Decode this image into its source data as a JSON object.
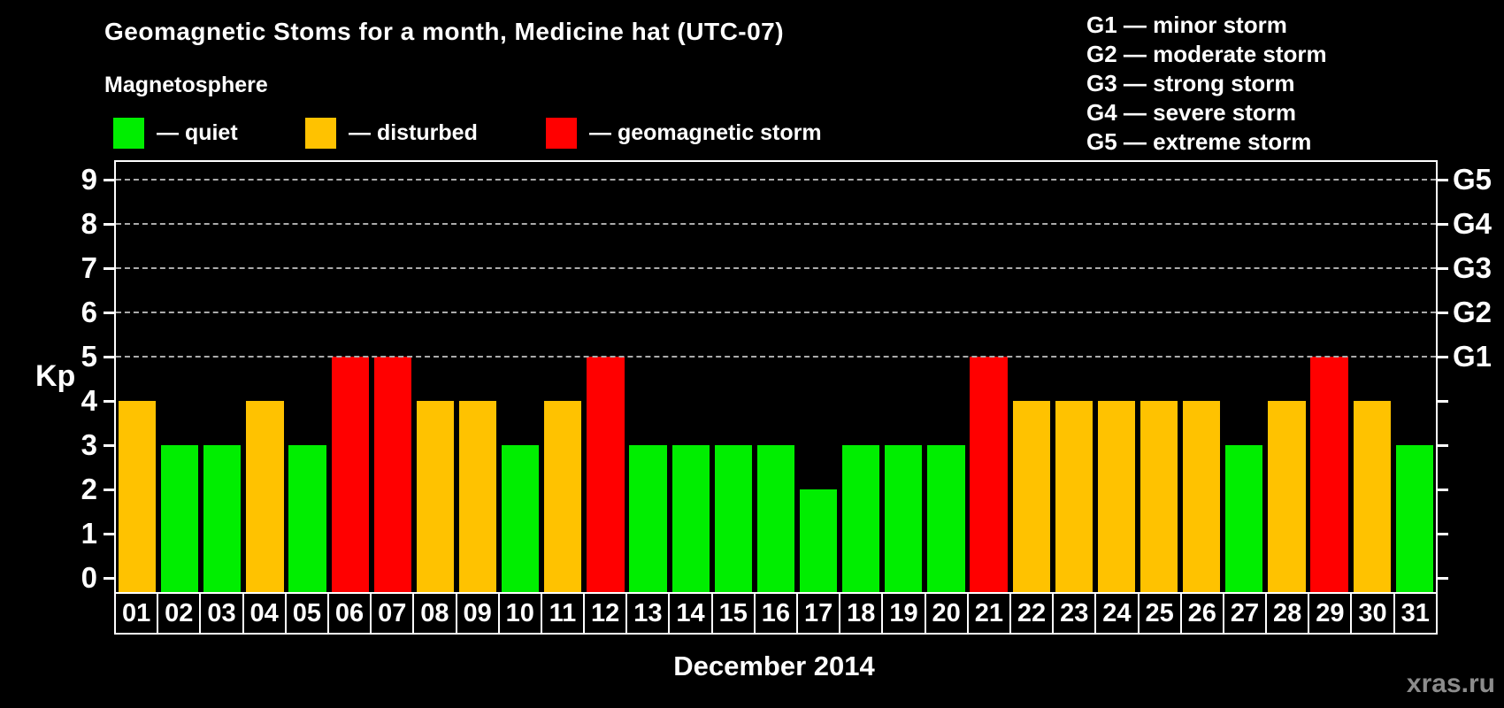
{
  "title": "Geomagnetic Stoms for a month, Medicine hat (UTC-07)",
  "subtitle": "Magnetosphere",
  "legend": {
    "items": [
      {
        "label": "— quiet",
        "state": "quiet",
        "color": "#00EE00"
      },
      {
        "label": "— disturbed",
        "state": "disturbed",
        "color": "#FFC200"
      },
      {
        "label": "— geomagnetic storm",
        "state": "storm",
        "color": "#FF0000"
      }
    ]
  },
  "g_legend": [
    "G1 — minor storm",
    "G2 — moderate storm",
    "G3 — strong storm",
    "G4 — severe storm",
    "G5 — extreme storm"
  ],
  "colors": {
    "quiet": "#00EE00",
    "disturbed": "#FFC200",
    "storm": "#FF0000",
    "axis": "#FFFFFF",
    "grid": "#ABABAB",
    "watermark": "#8C8C8C",
    "background": "#000000"
  },
  "axes": {
    "y_label": "Kp",
    "x_label": "December 2014"
  },
  "watermark": "xras.ru",
  "chart_data": {
    "type": "bar",
    "title": "Geomagnetic Stoms for a month, Medicine hat (UTC-07)",
    "xlabel": "December 2014",
    "ylabel": "Kp",
    "ylim": [
      0,
      9
    ],
    "grid": "dashed horizontal at Kp 5-9 only",
    "legend_position": "top-left",
    "categories": [
      "01",
      "02",
      "03",
      "04",
      "05",
      "06",
      "07",
      "08",
      "09",
      "10",
      "11",
      "12",
      "13",
      "14",
      "15",
      "16",
      "17",
      "18",
      "19",
      "20",
      "21",
      "22",
      "23",
      "24",
      "25",
      "26",
      "27",
      "28",
      "29",
      "30",
      "31"
    ],
    "values": [
      4,
      3,
      3,
      4,
      3,
      5,
      5,
      4,
      4,
      3,
      4,
      5,
      3,
      3,
      3,
      3,
      2,
      3,
      3,
      3,
      5,
      4,
      4,
      4,
      4,
      4,
      3,
      4,
      5,
      4,
      3
    ],
    "states": [
      "disturbed",
      "quiet",
      "quiet",
      "disturbed",
      "quiet",
      "storm",
      "storm",
      "disturbed",
      "disturbed",
      "quiet",
      "disturbed",
      "storm",
      "quiet",
      "quiet",
      "quiet",
      "quiet",
      "quiet",
      "quiet",
      "quiet",
      "quiet",
      "storm",
      "disturbed",
      "disturbed",
      "disturbed",
      "disturbed",
      "disturbed",
      "quiet",
      "disturbed",
      "storm",
      "disturbed",
      "quiet"
    ],
    "y_ticks": [
      0,
      1,
      2,
      3,
      4,
      5,
      6,
      7,
      8,
      9
    ],
    "gridlines_at": [
      5,
      6,
      7,
      8,
      9
    ],
    "right_axis": [
      {
        "value": 5,
        "label": "G1"
      },
      {
        "value": 6,
        "label": "G2"
      },
      {
        "value": 7,
        "label": "G3"
      },
      {
        "value": 8,
        "label": "G4"
      },
      {
        "value": 9,
        "label": "G5"
      }
    ]
  }
}
